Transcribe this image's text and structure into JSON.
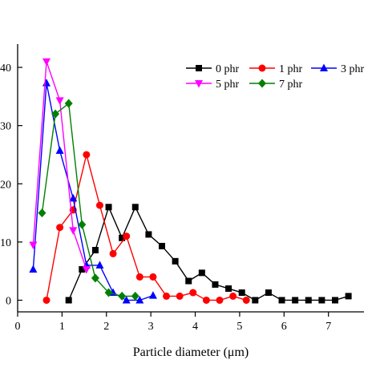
{
  "chart_data": {
    "type": "line",
    "title": "",
    "xlabel": "Particle diameter (μm)",
    "ylabel": "",
    "xlim": [
      0,
      7.8
    ],
    "ylim": [
      -2,
      44
    ],
    "xticks": [
      0,
      1,
      2,
      3,
      4,
      5,
      6,
      7
    ],
    "yticks": [
      0,
      10,
      20,
      30,
      40
    ],
    "ytick_labels": [
      "0",
      "10",
      "20",
      "30",
      "40"
    ],
    "grid": false,
    "legend_position": "top-right",
    "series": [
      {
        "name": "0 phr",
        "color": "#000000",
        "marker": "square",
        "x": [
          1.15,
          1.45,
          1.75,
          2.05,
          2.35,
          2.65,
          2.95,
          3.25,
          3.55,
          3.85,
          4.15,
          4.45,
          4.75,
          5.05,
          5.35,
          5.65,
          5.95,
          6.25,
          6.55,
          6.85,
          7.15,
          7.45
        ],
        "y": [
          0,
          5.3,
          8.6,
          16,
          10.7,
          16,
          11.3,
          9.3,
          6.7,
          3.3,
          4.7,
          2.7,
          2,
          1.3,
          0,
          1.3,
          0,
          0,
          0,
          0,
          0,
          0.7
        ]
      },
      {
        "name": "1 phr",
        "color": "#ff0000",
        "marker": "circle",
        "x": [
          0.65,
          0.95,
          1.25,
          1.55,
          1.85,
          2.15,
          2.45,
          2.75,
          3.05,
          3.35,
          3.65,
          3.95,
          4.25,
          4.55,
          4.85,
          5.15
        ],
        "y": [
          0,
          12.5,
          15.5,
          25,
          16.3,
          8,
          11,
          4,
          4,
          0.7,
          0.7,
          1.3,
          0,
          0,
          0.7,
          0
        ]
      },
      {
        "name": "3 phr",
        "color": "#0000ff",
        "marker": "triangle",
        "x": [
          0.35,
          0.65,
          0.95,
          1.25,
          1.55,
          1.85,
          2.15,
          2.45,
          2.75,
          3.05
        ],
        "y": [
          5.3,
          37.3,
          25.7,
          17.5,
          6,
          6,
          1.3,
          0,
          0,
          0.8
        ]
      },
      {
        "name": "5 phr",
        "color": "#ff00ff",
        "marker": "triangle-down",
        "x": [
          0.35,
          0.65,
          0.95,
          1.25,
          1.55
        ],
        "y": [
          9.5,
          41,
          34.3,
          12,
          5.3
        ]
      },
      {
        "name": "7 phr",
        "color": "#008000",
        "marker": "diamond",
        "x": [
          0.55,
          0.85,
          1.15,
          1.45,
          1.75,
          2.05,
          2.35,
          2.65
        ],
        "y": [
          15,
          32,
          33.8,
          13,
          3.8,
          1.3,
          0.7,
          0.7
        ]
      }
    ]
  }
}
